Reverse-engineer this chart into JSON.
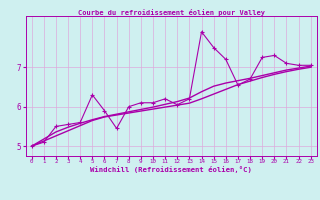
{
  "title": "Courbe du refroidissement éolien pour Valley",
  "xlabel": "Windchill (Refroidissement éolien,°C)",
  "bg_color": "#cff0f0",
  "line_color": "#aa00aa",
  "grid_color": "#ddaadd",
  "x_data": [
    0,
    1,
    2,
    3,
    4,
    5,
    6,
    7,
    8,
    9,
    10,
    11,
    12,
    13,
    14,
    15,
    16,
    17,
    18,
    19,
    20,
    21,
    22,
    23
  ],
  "y_main": [
    5.0,
    5.1,
    5.5,
    5.55,
    5.6,
    6.3,
    5.9,
    5.45,
    6.0,
    6.1,
    6.1,
    6.2,
    6.05,
    6.2,
    7.9,
    7.5,
    7.2,
    6.55,
    6.7,
    7.25,
    7.3,
    7.1,
    7.05,
    7.05
  ],
  "y_fit1": [
    5.0,
    5.13,
    5.26,
    5.39,
    5.52,
    5.65,
    5.74,
    5.79,
    5.84,
    5.89,
    5.94,
    5.99,
    6.04,
    6.09,
    6.2,
    6.32,
    6.44,
    6.56,
    6.65,
    6.74,
    6.82,
    6.89,
    6.95,
    7.0
  ],
  "y_fit2": [
    5.0,
    5.18,
    5.36,
    5.48,
    5.58,
    5.67,
    5.75,
    5.81,
    5.87,
    5.93,
    5.99,
    6.06,
    6.13,
    6.22,
    6.38,
    6.52,
    6.6,
    6.66,
    6.72,
    6.79,
    6.86,
    6.93,
    6.98,
    7.03
  ],
  "ylim": [
    4.75,
    8.3
  ],
  "xlim": [
    -0.5,
    23.5
  ],
  "yticks": [
    5,
    6,
    7
  ],
  "xticks": [
    0,
    1,
    2,
    3,
    4,
    5,
    6,
    7,
    8,
    9,
    10,
    11,
    12,
    13,
    14,
    15,
    16,
    17,
    18,
    19,
    20,
    21,
    22,
    23
  ],
  "xlabel_fontsize": 5.2,
  "xtick_fontsize": 4.2,
  "ytick_fontsize": 5.5,
  "linewidth_main": 0.8,
  "linewidth_fit": 1.0,
  "marker_size": 3.5,
  "grid_linewidth": 0.5
}
